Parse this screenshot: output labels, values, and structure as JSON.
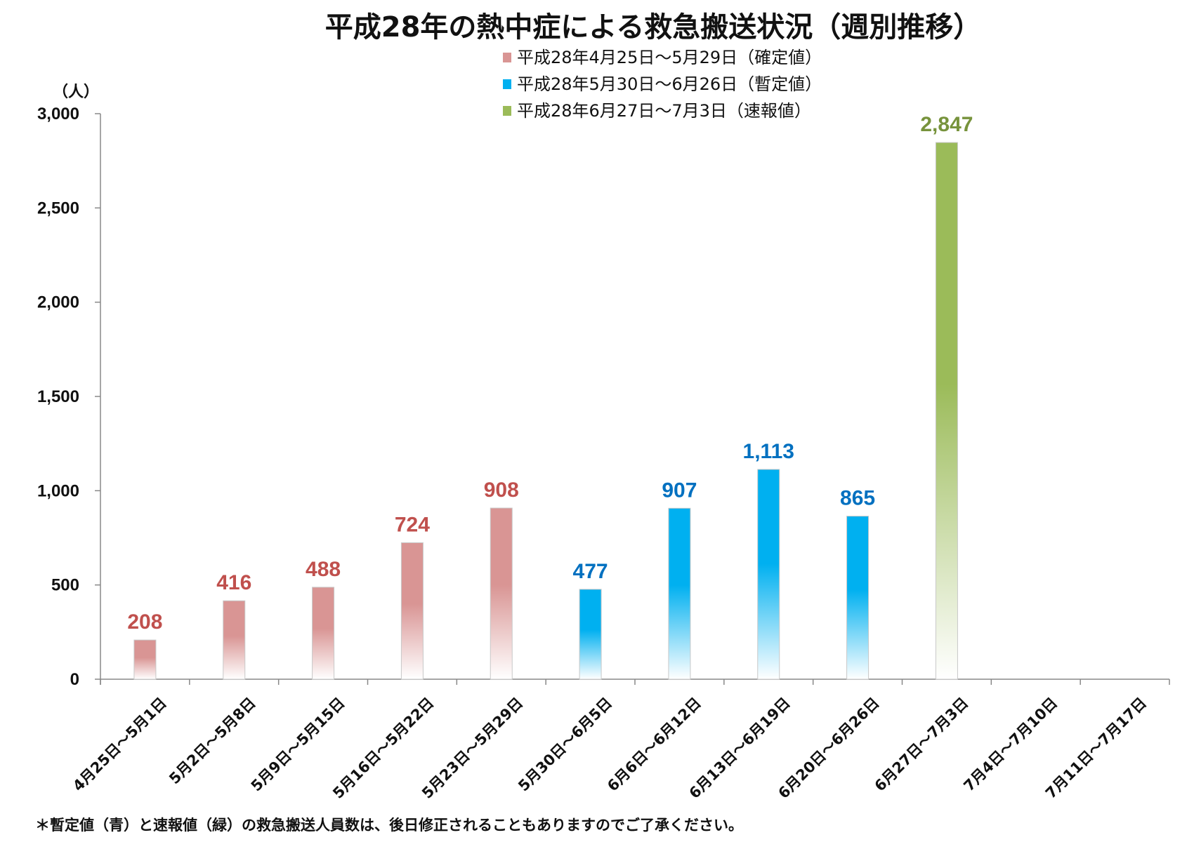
{
  "chart_data": {
    "type": "bar",
    "title": "平成28年の熱中症による救急搬送状況（週別推移）",
    "ylabel": "（人）",
    "ylim": [
      0,
      3000
    ],
    "yticks": [
      0,
      500,
      1000,
      1500,
      2000,
      2500,
      3000
    ],
    "ytick_labels": [
      "0",
      "500",
      "1,000",
      "1,500",
      "2,000",
      "2,500",
      "3,000"
    ],
    "categories": [
      "4月25日～5月1日",
      "5月2日～5月8日",
      "5月9日～5月15日",
      "5月16日～5月22日",
      "5月23日～5月29日",
      "5月30日～6月5日",
      "6月6日～6月12日",
      "6月13日～6月19日",
      "6月20日～6月26日",
      "6月27日～7月3日",
      "7月4日～7月10日",
      "7月11日～7月17日"
    ],
    "series": [
      {
        "name": "平成28年4月25日～5月29日（確定値）",
        "color": "#d99594",
        "label_color": "#c0504d",
        "values": [
          208,
          416,
          488,
          724,
          908,
          null,
          null,
          null,
          null,
          null,
          null,
          null
        ],
        "labels": [
          "208",
          "416",
          "488",
          "724",
          "908",
          "",
          "",
          "",
          "",
          "",
          "",
          ""
        ]
      },
      {
        "name": "平成28年5月30日～6月26日（暫定値）",
        "color": "#00b0f0",
        "label_color": "#0070c0",
        "values": [
          null,
          null,
          null,
          null,
          null,
          477,
          907,
          1113,
          865,
          null,
          null,
          null
        ],
        "labels": [
          "",
          "",
          "",
          "",
          "",
          "477",
          "907",
          "1,113",
          "865",
          "",
          "",
          ""
        ]
      },
      {
        "name": "平成28年6月27日～7月3日（速報値）",
        "color": "#9bbb59",
        "label_color": "#77933c",
        "values": [
          null,
          null,
          null,
          null,
          null,
          null,
          null,
          null,
          null,
          2847,
          null,
          null
        ],
        "labels": [
          "",
          "",
          "",
          "",
          "",
          "",
          "",
          "",
          "",
          "2,847",
          "",
          ""
        ]
      }
    ],
    "legend_position": "top",
    "grid": false,
    "footnote": "＊暫定値（青）と速報値（緑）の救急搬送人員数は、後日修正されることもありますのでご了承ください。"
  }
}
